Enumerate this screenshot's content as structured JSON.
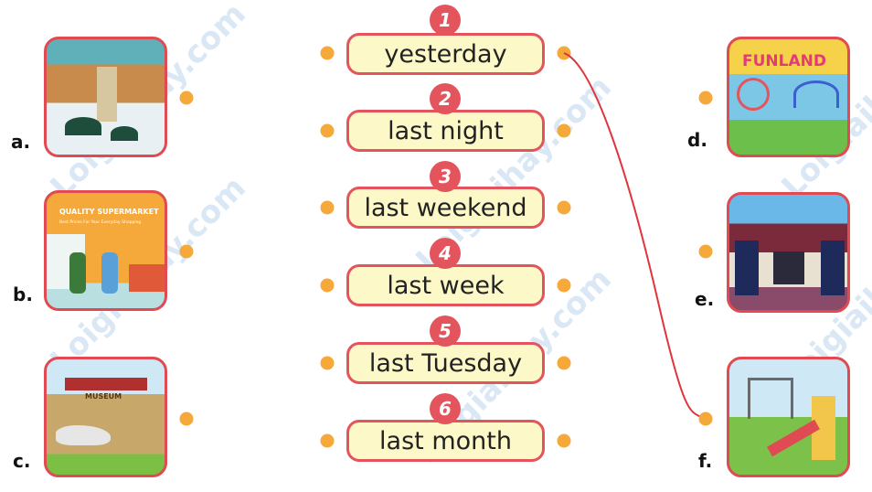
{
  "left_pictures": [
    {
      "letter": "a.",
      "scene": "shopping mall"
    },
    {
      "letter": "b.",
      "scene": "supermarket",
      "sign": "QUALITY SUPERMARKET",
      "subsign": "Best Prices For Your Everyday Shopping"
    },
    {
      "letter": "c.",
      "scene": "museum",
      "sign": "MUSEUM"
    }
  ],
  "right_pictures": [
    {
      "letter": "d.",
      "scene": "funfair",
      "sign": "FUNLAND"
    },
    {
      "letter": "e.",
      "scene": "cinema"
    },
    {
      "letter": "f.",
      "scene": "playground"
    }
  ],
  "phrases": [
    {
      "number": "1",
      "text": "yesterday"
    },
    {
      "number": "2",
      "text": "last night"
    },
    {
      "number": "3",
      "text": "last weekend"
    },
    {
      "number": "4",
      "text": "last week"
    },
    {
      "number": "5",
      "text": "last Tuesday"
    },
    {
      "number": "6",
      "text": "last month"
    }
  ],
  "match_line": {
    "from": "1",
    "to": "f.",
    "color": "#e0353d"
  },
  "colors": {
    "accent": "#e4545c",
    "dot": "#f6a93b",
    "box_fill": "#fdf8c8"
  },
  "watermark": "Loigiaihay.com"
}
